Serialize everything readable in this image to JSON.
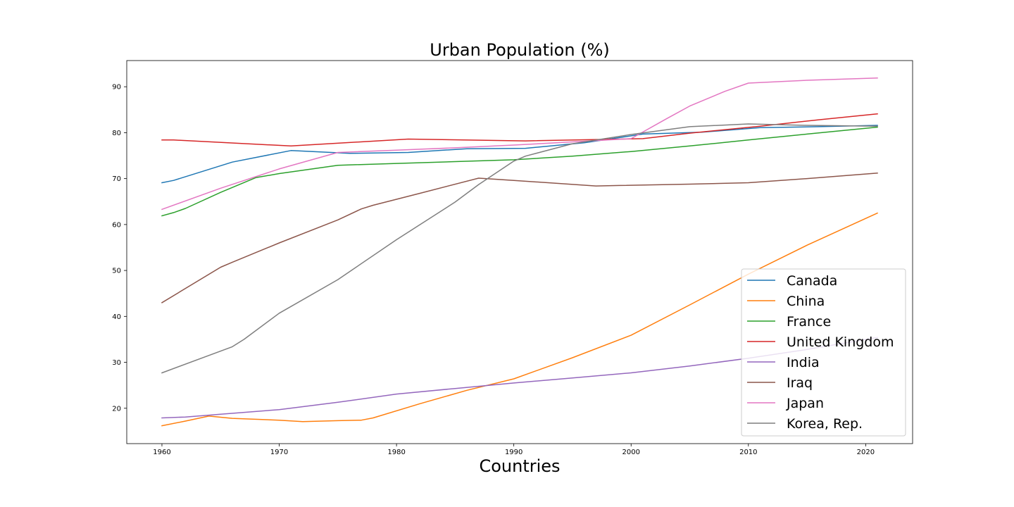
{
  "chart_data": {
    "type": "line",
    "title": "Urban Population (%)",
    "xlabel": "Countries",
    "ylabel": "",
    "xlim": [
      1957,
      2024
    ],
    "ylim": [
      12.3,
      95.7
    ],
    "xticks": [
      1960,
      1970,
      1980,
      1990,
      2000,
      2010,
      2020
    ],
    "yticks": [
      20,
      30,
      40,
      50,
      60,
      70,
      80,
      90
    ],
    "grid": false,
    "legend_position": "lower-right",
    "series": [
      {
        "name": "Canada",
        "color": "#1f77b4",
        "points": [
          [
            1960,
            69.1
          ],
          [
            1961,
            69.6
          ],
          [
            1966,
            73.6
          ],
          [
            1971,
            76.1
          ],
          [
            1976,
            75.5
          ],
          [
            1981,
            75.7
          ],
          [
            1986,
            76.5
          ],
          [
            1991,
            76.6
          ],
          [
            1996,
            77.8
          ],
          [
            2001,
            79.7
          ],
          [
            2006,
            80.1
          ],
          [
            2011,
            81.1
          ],
          [
            2016,
            81.3
          ],
          [
            2021,
            81.6
          ]
        ]
      },
      {
        "name": "China",
        "color": "#ff7f0e",
        "points": [
          [
            1960,
            16.2
          ],
          [
            1962,
            17.2
          ],
          [
            1964,
            18.3
          ],
          [
            1966,
            17.8
          ],
          [
            1970,
            17.4
          ],
          [
            1972,
            17.1
          ],
          [
            1975,
            17.3
          ],
          [
            1977,
            17.4
          ],
          [
            1978,
            17.9
          ],
          [
            1982,
            21.0
          ],
          [
            1986,
            23.9
          ],
          [
            1990,
            26.4
          ],
          [
            1995,
            31.0
          ],
          [
            2000,
            35.9
          ],
          [
            2005,
            42.5
          ],
          [
            2010,
            49.2
          ],
          [
            2015,
            55.5
          ],
          [
            2021,
            62.5
          ]
        ]
      },
      {
        "name": "France",
        "color": "#2ca02c",
        "points": [
          [
            1960,
            61.9
          ],
          [
            1961,
            62.6
          ],
          [
            1962,
            63.5
          ],
          [
            1965,
            67.0
          ],
          [
            1968,
            70.2
          ],
          [
            1970,
            71.1
          ],
          [
            1975,
            72.9
          ],
          [
            1980,
            73.3
          ],
          [
            1985,
            73.7
          ],
          [
            1990,
            74.1
          ],
          [
            1995,
            74.9
          ],
          [
            2000,
            75.9
          ],
          [
            2005,
            77.1
          ],
          [
            2010,
            78.4
          ],
          [
            2015,
            79.7
          ],
          [
            2021,
            81.2
          ]
        ]
      },
      {
        "name": "United Kingdom",
        "color": "#d62728",
        "points": [
          [
            1960,
            78.4
          ],
          [
            1961,
            78.4
          ],
          [
            1971,
            77.1
          ],
          [
            1981,
            78.6
          ],
          [
            1991,
            78.2
          ],
          [
            2001,
            78.7
          ],
          [
            2005,
            79.9
          ],
          [
            2011,
            81.4
          ],
          [
            2016,
            82.8
          ],
          [
            2021,
            84.1
          ]
        ]
      },
      {
        "name": "India",
        "color": "#9467bd",
        "points": [
          [
            1960,
            17.9
          ],
          [
            1962,
            18.1
          ],
          [
            1965,
            18.7
          ],
          [
            1970,
            19.7
          ],
          [
            1975,
            21.3
          ],
          [
            1980,
            23.1
          ],
          [
            1985,
            24.3
          ],
          [
            1990,
            25.5
          ],
          [
            1995,
            26.6
          ],
          [
            2000,
            27.7
          ],
          [
            2005,
            29.2
          ],
          [
            2010,
            30.9
          ],
          [
            2015,
            32.8
          ],
          [
            2021,
            35.4
          ]
        ]
      },
      {
        "name": "Iraq",
        "color": "#8c564b",
        "points": [
          [
            1960,
            43.0
          ],
          [
            1965,
            50.7
          ],
          [
            1966,
            51.8
          ],
          [
            1970,
            56.0
          ],
          [
            1975,
            61.0
          ],
          [
            1977,
            63.4
          ],
          [
            1978,
            64.2
          ],
          [
            1982,
            66.8
          ],
          [
            1987,
            70.1
          ],
          [
            1990,
            69.6
          ],
          [
            1997,
            68.4
          ],
          [
            1999,
            68.5
          ],
          [
            2005,
            68.8
          ],
          [
            2010,
            69.1
          ],
          [
            2015,
            70.0
          ],
          [
            2021,
            71.2
          ]
        ]
      },
      {
        "name": "Japan",
        "color": "#e377c2",
        "points": [
          [
            1960,
            63.3
          ],
          [
            1965,
            67.9
          ],
          [
            1970,
            72.1
          ],
          [
            1975,
            75.7
          ],
          [
            1980,
            76.2
          ],
          [
            1985,
            76.7
          ],
          [
            1990,
            77.3
          ],
          [
            1995,
            78.0
          ],
          [
            2000,
            78.7
          ],
          [
            2003,
            83.0
          ],
          [
            2005,
            85.8
          ],
          [
            2008,
            89.0
          ],
          [
            2010,
            90.8
          ],
          [
            2015,
            91.4
          ],
          [
            2021,
            91.9
          ]
        ]
      },
      {
        "name": "Korea, Rep.",
        "color": "#7f7f7f",
        "points": [
          [
            1960,
            27.7
          ],
          [
            1966,
            33.4
          ],
          [
            1967,
            35.0
          ],
          [
            1970,
            40.7
          ],
          [
            1975,
            48.0
          ],
          [
            1980,
            56.7
          ],
          [
            1985,
            64.9
          ],
          [
            1987,
            68.7
          ],
          [
            1990,
            73.8
          ],
          [
            1991,
            74.9
          ],
          [
            1995,
            77.6
          ],
          [
            2000,
            79.6
          ],
          [
            2005,
            81.3
          ],
          [
            2010,
            81.9
          ],
          [
            2015,
            81.6
          ],
          [
            2021,
            81.4
          ]
        ]
      }
    ]
  }
}
